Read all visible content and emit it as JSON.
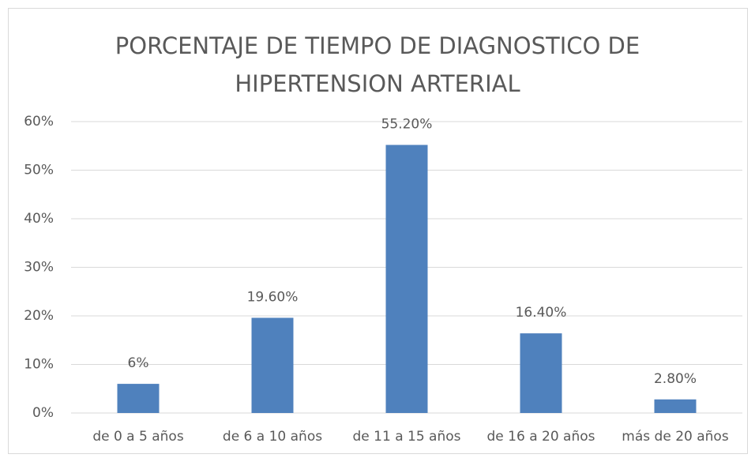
{
  "chart_data": {
    "type": "bar",
    "title": "PORCENTAJE DE TIEMPO DE DIAGNOSTICO DE HIPERTENSION ARTERIAL",
    "categories": [
      "de 0 a 5 años",
      "de 6 a 10 años",
      "de 11 a 15 años",
      "de 16 a 20 años",
      "más de 20 años"
    ],
    "values": [
      6,
      19.6,
      55.2,
      16.4,
      2.8
    ],
    "value_labels": [
      "6%",
      "19.60%",
      "55.20%",
      "16.40%",
      "2.80%"
    ],
    "color": "#4f81bd",
    "ylim": [
      0,
      60
    ],
    "yticks": [
      {
        "value": 0,
        "label": "0%"
      },
      {
        "value": 10,
        "label": "10%"
      },
      {
        "value": 20,
        "label": "20%"
      },
      {
        "value": 30,
        "label": "30%"
      },
      {
        "value": 40,
        "label": "40%"
      },
      {
        "value": 50,
        "label": "50%"
      },
      {
        "value": 60,
        "label": "60%"
      }
    ],
    "grid": true
  }
}
